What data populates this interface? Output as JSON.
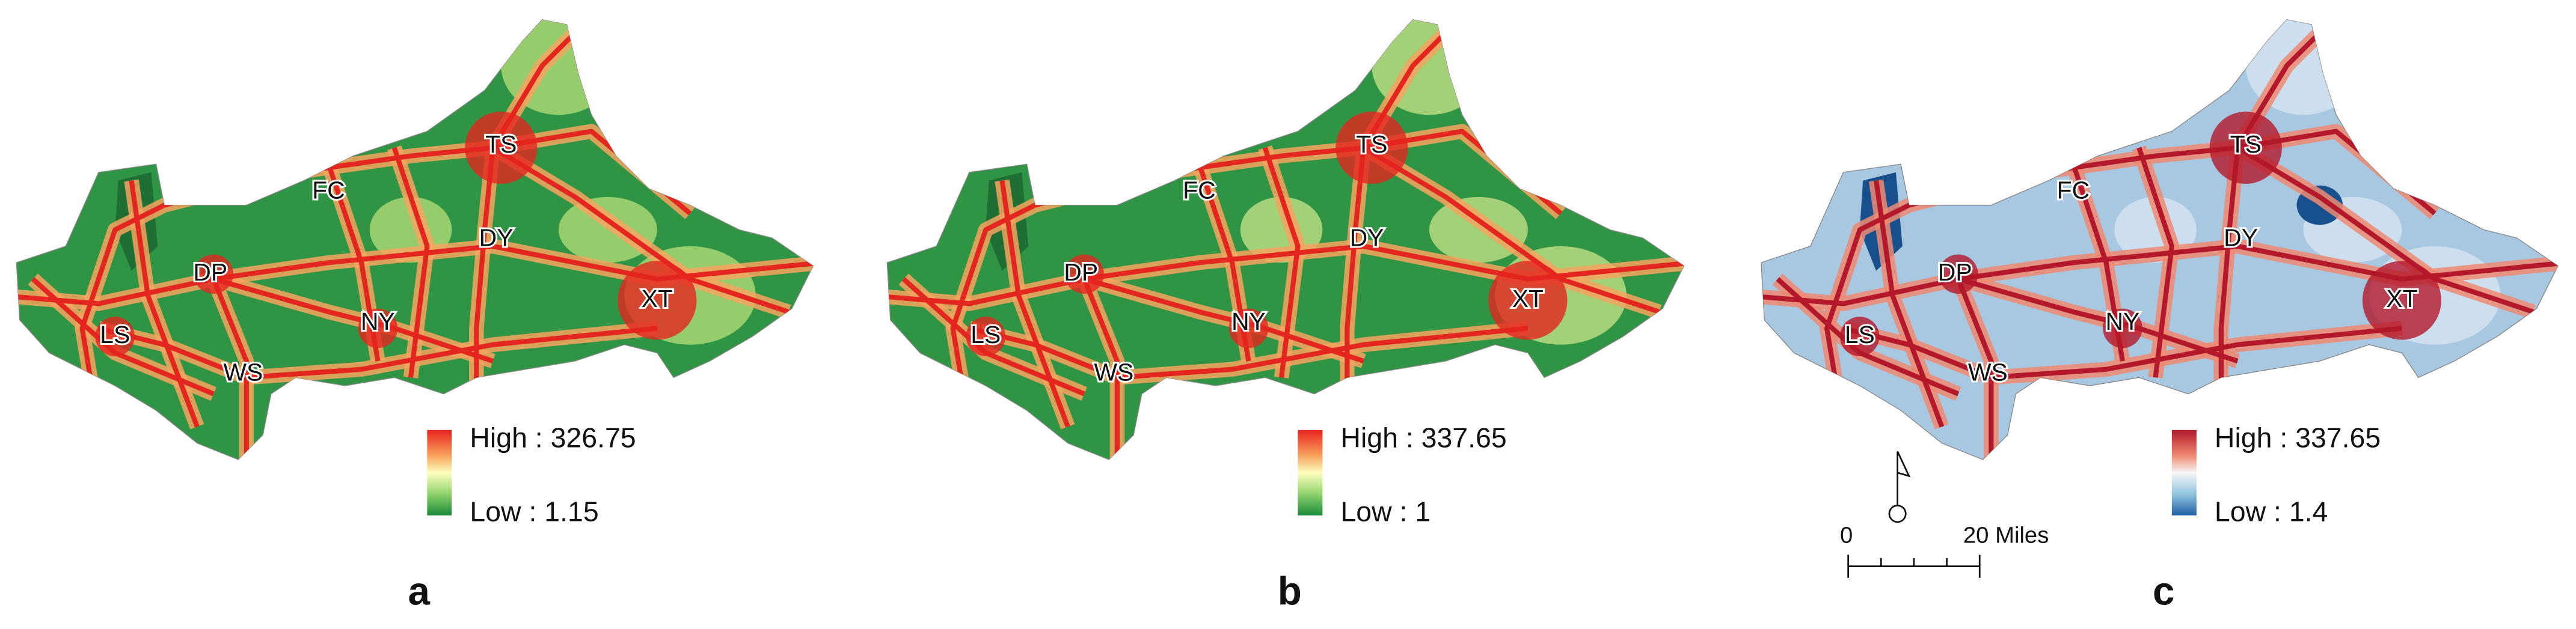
{
  "panels": [
    {
      "label": "a",
      "legend": {
        "high": "High : 326.75",
        "low": "Low : 1.15"
      },
      "places": [
        "TS",
        "FC",
        "DY",
        "DP",
        "NY",
        "XT",
        "LS",
        "WS"
      ]
    },
    {
      "label": "b",
      "legend": {
        "high": "High : 337.65",
        "low": "Low : 1"
      },
      "places": [
        "TS",
        "FC",
        "DY",
        "DP",
        "NY",
        "XT",
        "LS",
        "WS"
      ]
    },
    {
      "label": "c",
      "legend": {
        "high": "High : 337.65",
        "low": "Low : 1.4"
      },
      "places": [
        "TS",
        "FC",
        "DY",
        "DP",
        "NY",
        "XT",
        "LS",
        "WS"
      ]
    }
  ],
  "scale_bar": {
    "start": "0",
    "end": "20 Miles"
  }
}
